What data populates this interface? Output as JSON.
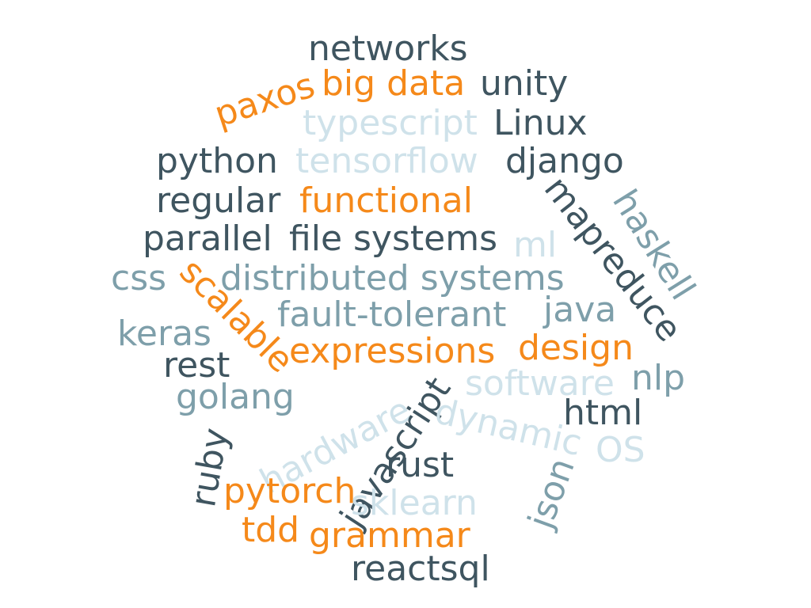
{
  "palette": {
    "dark": "#3f5560",
    "mid": "#7e9faa",
    "light": "#cfe2ea",
    "orange": "#f5891a"
  },
  "words": [
    {
      "text": "networks",
      "color": "dark"
    },
    {
      "text": "paxos",
      "color": "orange"
    },
    {
      "text": "big data",
      "color": "orange"
    },
    {
      "text": "unity",
      "color": "dark"
    },
    {
      "text": "typescript",
      "color": "light"
    },
    {
      "text": "Linux",
      "color": "dark"
    },
    {
      "text": "python",
      "color": "dark"
    },
    {
      "text": "tensorflow",
      "color": "light"
    },
    {
      "text": "django",
      "color": "dark"
    },
    {
      "text": "regular",
      "color": "dark"
    },
    {
      "text": "functional",
      "color": "orange"
    },
    {
      "text": "mapreduce",
      "color": "dark"
    },
    {
      "text": "haskell",
      "color": "mid"
    },
    {
      "text": "parallel",
      "color": "dark"
    },
    {
      "text": "file systems",
      "color": "dark"
    },
    {
      "text": "ml",
      "color": "light"
    },
    {
      "text": "css",
      "color": "mid"
    },
    {
      "text": "scalable",
      "color": "orange"
    },
    {
      "text": "distributed systems",
      "color": "mid"
    },
    {
      "text": "fault-tolerant",
      "color": "mid"
    },
    {
      "text": "java",
      "color": "mid"
    },
    {
      "text": "keras",
      "color": "mid"
    },
    {
      "text": "expressions",
      "color": "orange"
    },
    {
      "text": "design",
      "color": "orange"
    },
    {
      "text": "rest",
      "color": "dark"
    },
    {
      "text": "software",
      "color": "light"
    },
    {
      "text": "nlp",
      "color": "mid"
    },
    {
      "text": "golang",
      "color": "mid"
    },
    {
      "text": "hardware",
      "color": "light"
    },
    {
      "text": "javascript",
      "color": "dark"
    },
    {
      "text": "dynamic",
      "color": "light"
    },
    {
      "text": "html",
      "color": "dark"
    },
    {
      "text": "OS",
      "color": "light"
    },
    {
      "text": "ruby",
      "color": "dark"
    },
    {
      "text": "pytorch",
      "color": "orange"
    },
    {
      "text": "rust",
      "color": "dark"
    },
    {
      "text": "json",
      "color": "mid"
    },
    {
      "text": "sklearn",
      "color": "light"
    },
    {
      "text": "tdd",
      "color": "orange"
    },
    {
      "text": "grammar",
      "color": "orange"
    },
    {
      "text": "reactsql",
      "color": "dark"
    }
  ]
}
